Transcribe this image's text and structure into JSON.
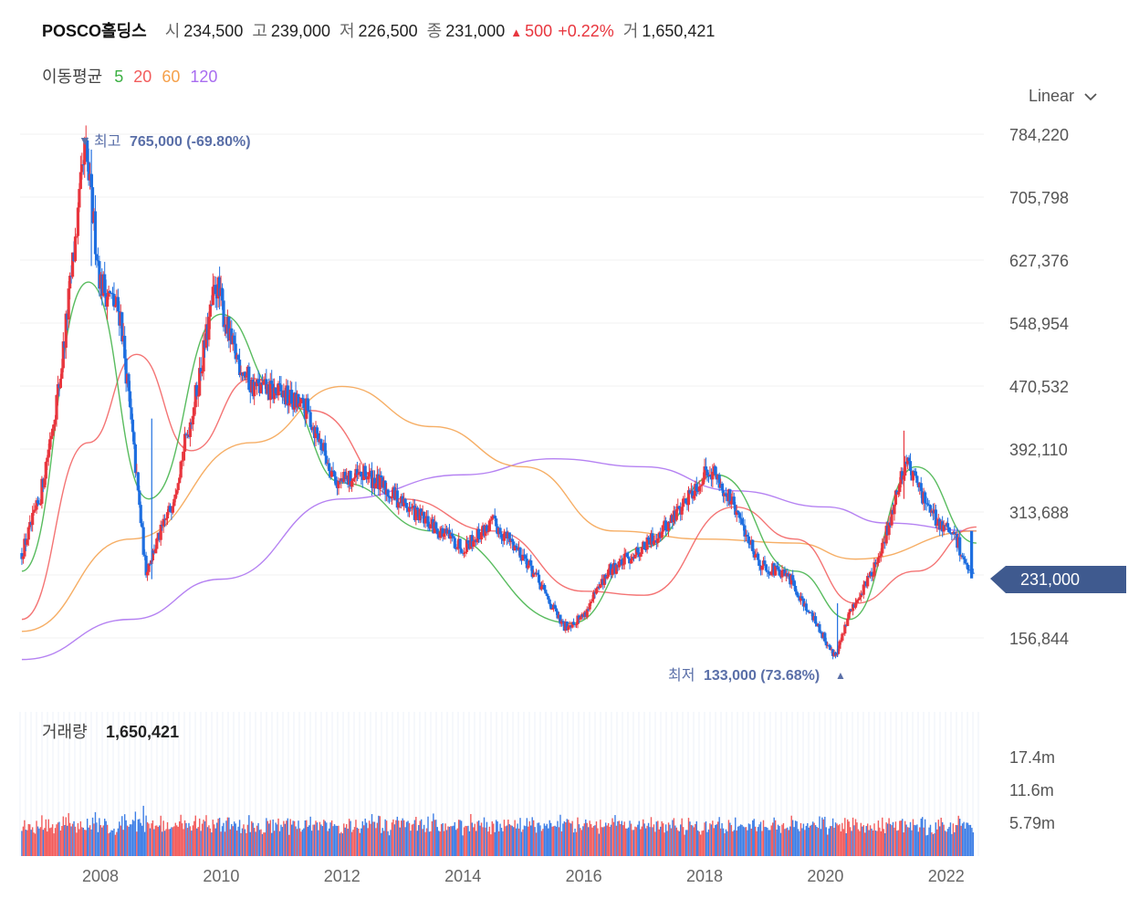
{
  "header": {
    "name": "POSCO홀딩스",
    "open_label": "시",
    "open": "234,500",
    "high_label": "고",
    "high": "239,000",
    "low_label": "저",
    "low": "226,500",
    "close_label": "종",
    "close": "231,000",
    "change": "500",
    "change_pct": "+0.22%",
    "volume_label": "거",
    "volume": "1,650,421"
  },
  "ma_legend": {
    "title": "이동평균",
    "periods": [
      "5",
      "20",
      "60",
      "120"
    ],
    "colors": [
      "#3cb043",
      "#f25c5c",
      "#f5a04a",
      "#a86cf0"
    ]
  },
  "scale_selector": {
    "label": "Linear",
    "icon": "chevron-down-icon"
  },
  "chart_data": {
    "type": "candlestick",
    "yaxis_ticks": [
      "784,220",
      "705,798",
      "627,376",
      "548,954",
      "470,532",
      "392,110",
      "313,688",
      "156,844"
    ],
    "xaxis_ticks": [
      "2008",
      "2010",
      "2012",
      "2014",
      "2016",
      "2018",
      "2020",
      "2022"
    ],
    "current_price_label": "231,000",
    "high_annotation": {
      "label": "최고",
      "value": "765,000 (-69.80%)"
    },
    "low_annotation": {
      "label": "최저",
      "value": "133,000 (73.68%)"
    },
    "price_path": [
      [
        "2006-09",
        255000
      ],
      [
        "2007-01",
        330000
      ],
      [
        "2007-05",
        480000
      ],
      [
        "2007-10",
        765000
      ],
      [
        "2008-01",
        600000
      ],
      [
        "2008-05",
        560000
      ],
      [
        "2008-10",
        240000
      ],
      [
        "2009-03",
        320000
      ],
      [
        "2009-08",
        460000
      ],
      [
        "2009-12",
        600000
      ],
      [
        "2010-03",
        520000
      ],
      [
        "2010-07",
        470000
      ],
      [
        "2011-01",
        460000
      ],
      [
        "2011-06",
        440000
      ],
      [
        "2011-12",
        350000
      ],
      [
        "2012-06",
        360000
      ],
      [
        "2012-12",
        330000
      ],
      [
        "2013-06",
        300000
      ],
      [
        "2014-01",
        270000
      ],
      [
        "2014-07",
        300000
      ],
      [
        "2015-01",
        260000
      ],
      [
        "2015-09",
        170000
      ],
      [
        "2016-01",
        185000
      ],
      [
        "2016-06",
        240000
      ],
      [
        "2017-01",
        270000
      ],
      [
        "2017-06",
        300000
      ],
      [
        "2018-02",
        370000
      ],
      [
        "2018-06",
        330000
      ],
      [
        "2018-12",
        250000
      ],
      [
        "2019-06",
        230000
      ],
      [
        "2020-03",
        133000
      ],
      [
        "2020-06",
        190000
      ],
      [
        "2020-12",
        260000
      ],
      [
        "2021-05",
        380000
      ],
      [
        "2021-10",
        310000
      ],
      [
        "2022-03",
        280000
      ],
      [
        "2022-06",
        231000
      ]
    ],
    "moving_averages": {
      "ma5": [
        [
          2006.7,
          240000
        ],
        [
          2007.8,
          600000
        ],
        [
          2008.8,
          330000
        ],
        [
          2010.0,
          560000
        ],
        [
          2011.0,
          460000
        ],
        [
          2012.0,
          350000
        ],
        [
          2013.5,
          290000
        ],
        [
          2015.8,
          175000
        ],
        [
          2017.0,
          270000
        ],
        [
          2018.2,
          360000
        ],
        [
          2019.5,
          240000
        ],
        [
          2020.4,
          180000
        ],
        [
          2021.5,
          370000
        ],
        [
          2022.5,
          275000
        ]
      ],
      "ma20": [
        [
          2006.7,
          180000
        ],
        [
          2007.8,
          400000
        ],
        [
          2008.6,
          510000
        ],
        [
          2009.5,
          390000
        ],
        [
          2010.5,
          480000
        ],
        [
          2011.5,
          440000
        ],
        [
          2013.0,
          330000
        ],
        [
          2014.5,
          290000
        ],
        [
          2016.0,
          215000
        ],
        [
          2017.0,
          210000
        ],
        [
          2018.5,
          320000
        ],
        [
          2019.5,
          280000
        ],
        [
          2020.5,
          200000
        ],
        [
          2021.5,
          240000
        ],
        [
          2022.5,
          295000
        ]
      ],
      "ma60": [
        [
          2006.7,
          165000
        ],
        [
          2008.5,
          280000
        ],
        [
          2010.5,
          400000
        ],
        [
          2012.0,
          470000
        ],
        [
          2013.5,
          420000
        ],
        [
          2015.0,
          370000
        ],
        [
          2016.5,
          290000
        ],
        [
          2018.0,
          280000
        ],
        [
          2019.5,
          275000
        ],
        [
          2020.5,
          255000
        ],
        [
          2022.5,
          290000
        ]
      ],
      "ma120": [
        [
          2006.7,
          130000
        ],
        [
          2008.5,
          180000
        ],
        [
          2010.0,
          230000
        ],
        [
          2012.0,
          330000
        ],
        [
          2014.0,
          360000
        ],
        [
          2015.5,
          380000
        ],
        [
          2017.0,
          370000
        ],
        [
          2018.5,
          340000
        ],
        [
          2020.0,
          320000
        ],
        [
          2021.0,
          300000
        ],
        [
          2022.5,
          290000
        ]
      ]
    },
    "volume": {
      "label": "거래량",
      "value": "1,650,421",
      "yaxis_ticks": [
        "17.4m",
        "11.6m",
        "5.79m"
      ],
      "colors": {
        "up": "#f25c5c",
        "down": "#3d7ee6"
      }
    },
    "colors": {
      "up": "#e8363e",
      "down": "#1f6fe0",
      "grid": "#f2f2f2",
      "badge": "#3f5a8f"
    }
  }
}
